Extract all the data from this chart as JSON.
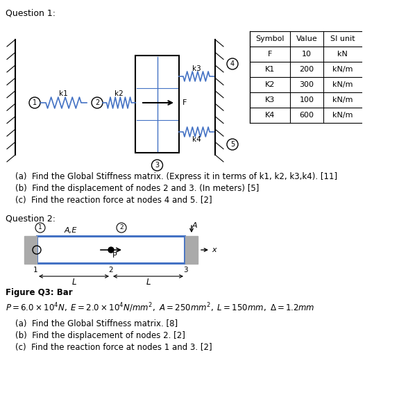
{
  "background_color": "#ffffff",
  "q1_label": "Question 1:",
  "q2_label": "Question 2:",
  "fig_label": "Figure Q3: Bar",
  "table_headers": [
    "Symbol",
    "Value",
    "SI unit"
  ],
  "table_rows": [
    [
      "F",
      "10",
      "kN"
    ],
    [
      "K1",
      "200",
      "kN/m"
    ],
    [
      "K2",
      "300",
      "kN/m"
    ],
    [
      "K3",
      "100",
      "kN/m"
    ],
    [
      "K4",
      "600",
      "kN/m"
    ]
  ],
  "q1_parts": [
    "(a)  Find the Global Stiffness matrix. (Express it in terms of k1, k2, k3,k4). [11]",
    "(b)  Find the displacement of nodes 2 and 3. (In meters) [5]",
    "(c)  Find the reaction force at nodes 4 and 5. [2]"
  ],
  "q2_parts": [
    "(a)  Find the Global Stiffness matrix. [8]",
    "(b)  Find the displacement of nodes 2. [2]",
    "(c)  Find the reaction force at nodes 1 and 3. [2]"
  ],
  "spring_color": "#4472c4",
  "wall_hatch_color": "#888888"
}
